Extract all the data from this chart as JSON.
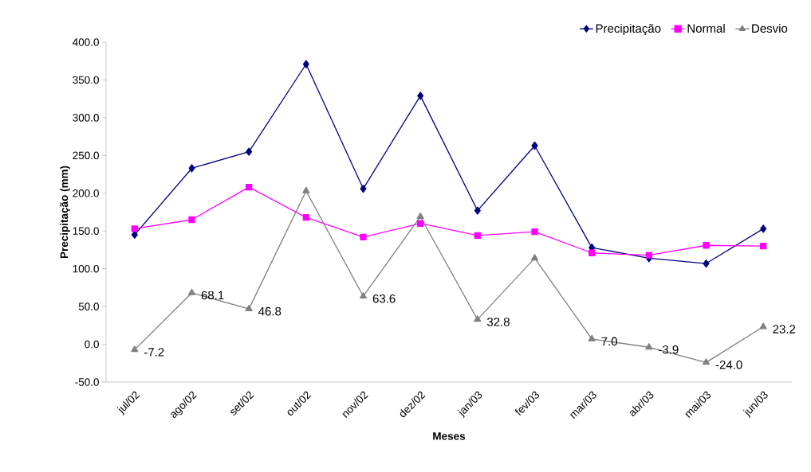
{
  "chart_data": {
    "type": "line",
    "xlabel": "Meses",
    "ylabel": "Precipitação (mm)",
    "categories": [
      "jul/02",
      "ago/02",
      "set/02",
      "out/02",
      "nov/02",
      "dez/02",
      "jan/03",
      "fev/03",
      "mar/03",
      "abr/03",
      "mai/03",
      "jun/03"
    ],
    "series": [
      {
        "name": "Precipitação",
        "color": "#000080",
        "marker": "diamond",
        "values": [
          145,
          233,
          255,
          371,
          206,
          329,
          177,
          263,
          128,
          114,
          107,
          153
        ]
      },
      {
        "name": "Normal",
        "color": "#ff00ff",
        "marker": "square",
        "values": [
          153,
          165,
          208,
          168,
          142,
          160,
          144,
          149,
          121,
          118,
          131,
          130
        ]
      },
      {
        "name": "Desvio",
        "color": "#808080",
        "marker": "triangle",
        "values": [
          -7.2,
          68.1,
          46.8,
          203,
          63.6,
          169,
          32.8,
          114,
          7.0,
          -3.9,
          -24.0,
          23.2
        ],
        "value_labels": [
          "-7.2",
          "68.1",
          "46.8",
          null,
          "63.6",
          null,
          "32.8",
          null,
          "7.0",
          "-3.9",
          "-24.0",
          "23.2"
        ]
      }
    ],
    "ylim": [
      -50,
      400
    ],
    "yticks": [
      {
        "value": -50,
        "label": "-50.0"
      },
      {
        "value": 0,
        "label": "0.0"
      },
      {
        "value": 50,
        "label": "50.0"
      },
      {
        "value": 100,
        "label": "100.0"
      },
      {
        "value": 150,
        "label": "150.0"
      },
      {
        "value": 200,
        "label": "200.0"
      },
      {
        "value": 250,
        "label": "250.0"
      },
      {
        "value": 300,
        "label": "300.0"
      },
      {
        "value": 350,
        "label": "350.0"
      },
      {
        "value": 400,
        "label": "400.0"
      }
    ],
    "grid": false,
    "legend": "top right",
    "line_style": "solid"
  }
}
